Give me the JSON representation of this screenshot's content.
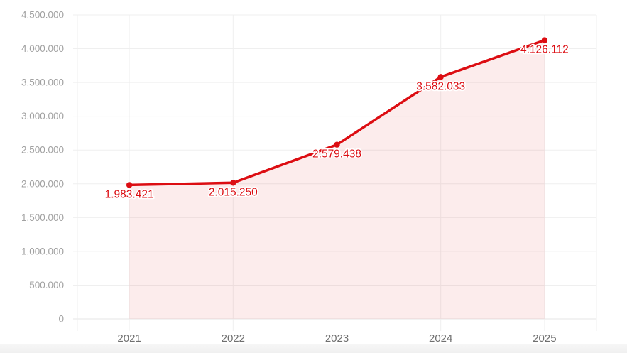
{
  "chart_data": {
    "type": "area",
    "title": "",
    "xlabel": "",
    "ylabel": "",
    "categories": [
      "2021",
      "2022",
      "2023",
      "2024",
      "2025"
    ],
    "values": [
      1983421,
      2015250,
      2579438,
      3582033,
      4126112
    ],
    "value_labels": [
      "1.983.421",
      "2.015.250",
      "2.579.438",
      "3.582.033",
      "4.126.112"
    ],
    "ylim": [
      0,
      4500000
    ],
    "y_tick_step": 500000,
    "y_tick_labels": [
      "0",
      "500.000",
      "1.000.000",
      "1.500.000",
      "2.000.000",
      "2.500.000",
      "3.000.000",
      "3.500.000",
      "4.000.000",
      "4.500.000"
    ],
    "grid": true,
    "legend": false,
    "colors": {
      "line": "#dc0d12",
      "area_fill": "rgba(220, 13, 18, 0.08)",
      "marker": "#dc0d12",
      "data_label": "#dc0d12",
      "data_label_halo": "#ffffff",
      "grid_line": "#efefef",
      "axis_line": "#e4e4e4",
      "y_tick_text": "#a1a1a1",
      "x_tick_text": "#6f6f6f",
      "background": "#ffffff"
    }
  }
}
